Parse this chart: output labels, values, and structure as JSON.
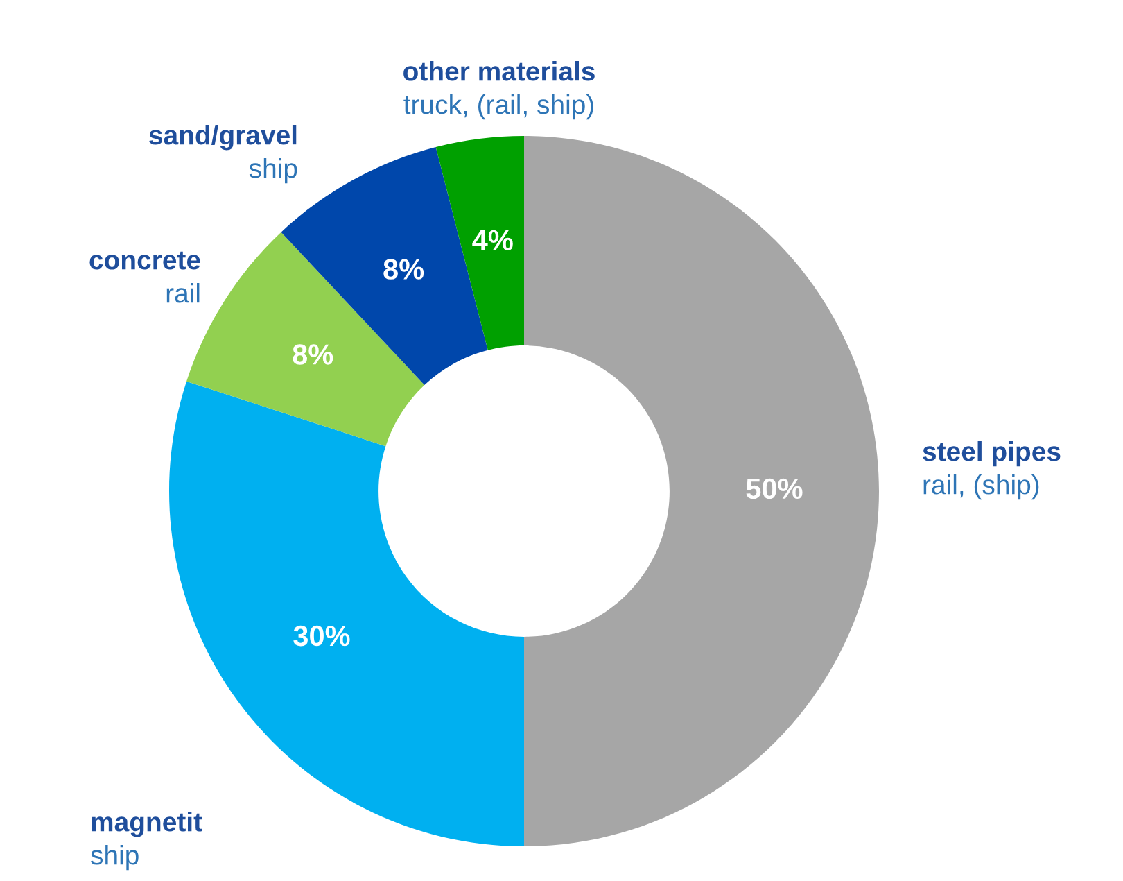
{
  "chart_data": {
    "type": "donut",
    "categories": [
      "steel pipes",
      "magnetit",
      "concrete",
      "sand/gravel",
      "other materials"
    ],
    "values": [
      50,
      30,
      8,
      8,
      4
    ],
    "colors": [
      "#a6a6a6",
      "#00b0f0",
      "#92d050",
      "#0047ab",
      "#00a000"
    ],
    "value_labels": [
      "50%",
      "30%",
      "8%",
      "8%",
      "4%"
    ],
    "annotations": [
      "rail, (ship)",
      "ship",
      "rail",
      "ship",
      "truck, (rail, ship)"
    ],
    "legend": false
  }
}
